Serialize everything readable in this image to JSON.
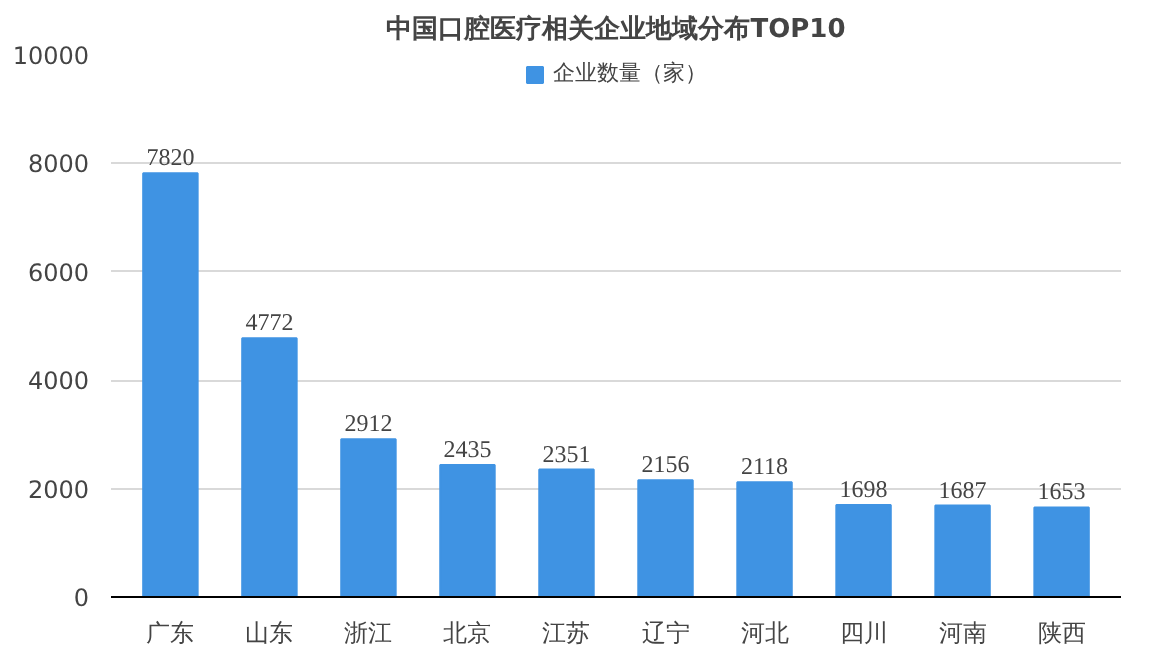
{
  "chart_data": {
    "type": "bar",
    "title": "中国口腔医疗相关企业地域分布TOP10",
    "categories": [
      "广东",
      "山东",
      "浙江",
      "北京",
      "江苏",
      "辽宁",
      "河北",
      "四川",
      "河南",
      "陕西"
    ],
    "series": [
      {
        "name": "企业数量（家）",
        "color": "#3f93e3",
        "values": [
          7820,
          4772,
          2912,
          2435,
          2351,
          2156,
          2118,
          1698,
          1687,
          1653
        ]
      }
    ],
    "ylim": [
      0,
      10000
    ],
    "yticks": [
      0,
      2000,
      4000,
      6000,
      8000,
      10000
    ],
    "grid": "y",
    "legend": "top",
    "data_labels": true
  }
}
